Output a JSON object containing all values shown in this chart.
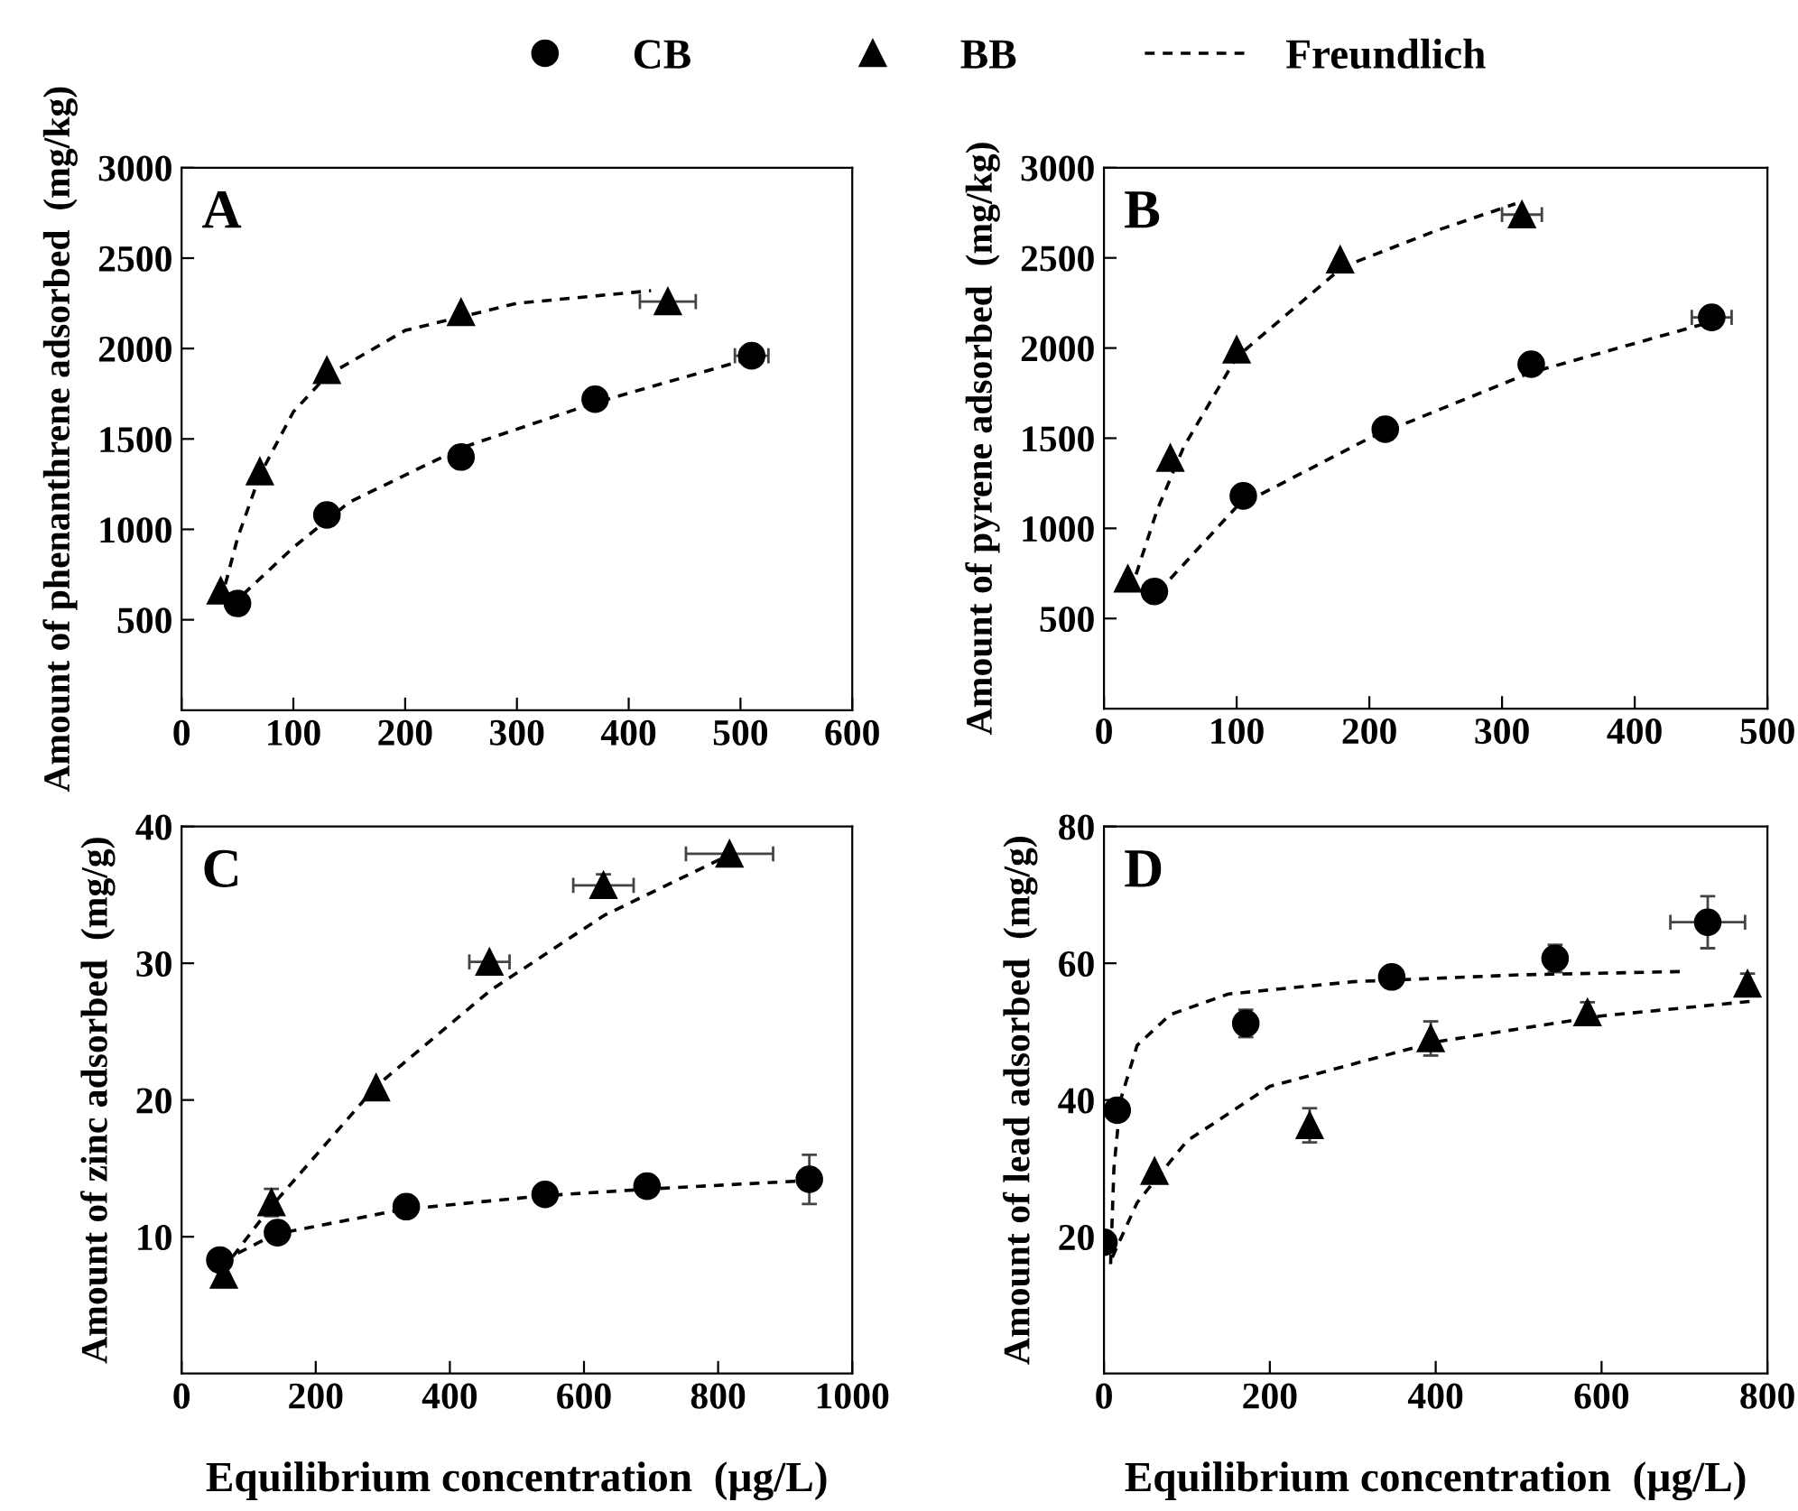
{
  "chart_data": [
    {
      "type": "scatter",
      "title": "A",
      "ylabel": "Amount of phenanthrene adsorbed  (mg/kg)",
      "xlim": [
        0,
        600
      ],
      "xticks": [
        0,
        100,
        200,
        300,
        400,
        500,
        600
      ],
      "ylim": [
        0,
        3000
      ],
      "yticks": [
        500,
        1000,
        1500,
        2000,
        2500,
        3000
      ],
      "legend": "top",
      "grid": false,
      "series": [
        {
          "name": "CB",
          "color": "#000000",
          "marker": "circle",
          "x": [
            50,
            130,
            250,
            370,
            510
          ],
          "values": [
            590,
            1080,
            1400,
            1720,
            1960
          ],
          "xerrors": [
            null,
            null,
            null,
            null,
            15
          ]
        },
        {
          "name": "BB",
          "color": "#000000",
          "marker": "triangle",
          "x": [
            35,
            70,
            130,
            250,
            435
          ],
          "values": [
            660,
            1320,
            1880,
            2200,
            2260
          ],
          "xerrors": [
            null,
            null,
            null,
            null,
            25
          ]
        },
        {
          "name": "Freundlich",
          "type": "line",
          "line_style": "dashed",
          "marker": "none",
          "color": "#000000",
          "x": [
            55,
            100,
            150,
            250,
            370,
            500
          ],
          "values": [
            640,
            900,
            1150,
            1450,
            1700,
            1930
          ]
        },
        {
          "type": "line",
          "line_style": "dashed",
          "marker": "none",
          "color": "#000000",
          "x": [
            35,
            50,
            70,
            100,
            130,
            200,
            300,
            420
          ],
          "values": [
            600,
            950,
            1300,
            1650,
            1850,
            2100,
            2250,
            2320
          ]
        }
      ]
    },
    {
      "type": "scatter",
      "title": "B",
      "ylabel": "Amount of pyrene adsorbed  (mg/kg)",
      "xlim": [
        0,
        500
      ],
      "xticks": [
        0,
        100,
        200,
        300,
        400,
        500
      ],
      "ylim": [
        0,
        3000
      ],
      "yticks": [
        500,
        1000,
        1500,
        2000,
        2500,
        3000
      ],
      "grid": false,
      "series": [
        {
          "name": "CB",
          "color": "#000000",
          "marker": "circle",
          "x": [
            38,
            105,
            212,
            322,
            458
          ],
          "values": [
            650,
            1180,
            1550,
            1910,
            2170
          ],
          "xerrors": [
            null,
            null,
            null,
            null,
            15
          ]
        },
        {
          "name": "BB",
          "color": "#000000",
          "marker": "triangle",
          "x": [
            18,
            50,
            100,
            178,
            315
          ],
          "values": [
            720,
            1390,
            1990,
            2490,
            2740
          ],
          "xerrors": [
            null,
            null,
            null,
            null,
            15
          ]
        },
        {
          "name": "Freundlich",
          "type": "line",
          "line_style": "dashed",
          "marker": "none",
          "color": "#000000",
          "x": [
            50,
            100,
            200,
            320,
            460
          ],
          "values": [
            720,
            1120,
            1500,
            1860,
            2150
          ]
        },
        {
          "type": "line",
          "line_style": "dashed",
          "marker": "none",
          "color": "#000000",
          "x": [
            20,
            40,
            60,
            100,
            180,
            250,
            310
          ],
          "values": [
            650,
            1100,
            1450,
            1950,
            2450,
            2650,
            2800
          ]
        }
      ]
    },
    {
      "type": "scatter",
      "title": "C",
      "xlabel": "Equilibrium concentration  (µg/L)",
      "ylabel": "Amount of zinc adsorbed  (mg/g)",
      "xlim": [
        0,
        1000
      ],
      "xticks": [
        0,
        200,
        400,
        600,
        800,
        1000
      ],
      "ylim": [
        0,
        40
      ],
      "yticks": [
        10,
        20,
        30,
        40
      ],
      "grid": false,
      "series": [
        {
          "name": "CB",
          "color": "#000000",
          "marker": "circle",
          "x": [
            57,
            143,
            335,
            542,
            694,
            936
          ],
          "values": [
            8.3,
            10.3,
            12.2,
            13.1,
            13.7,
            14.2
          ],
          "errors": [
            null,
            null,
            null,
            null,
            0.7,
            1.8
          ]
        },
        {
          "name": "BB",
          "color": "#000000",
          "marker": "triangle",
          "x": [
            63,
            134,
            290,
            459,
            629,
            817
          ],
          "values": [
            7.2,
            12.5,
            20.9,
            30.1,
            35.7,
            38.0
          ],
          "errors": [
            null,
            1,
            null,
            null,
            0.8,
            null
          ],
          "xerrors": [
            null,
            null,
            null,
            30,
            45,
            65
          ]
        },
        {
          "name": "Freundlich",
          "type": "line",
          "line_style": "dashed",
          "marker": "none",
          "color": "#000000",
          "x": [
            60,
            140,
            330,
            540,
            700,
            930
          ],
          "values": [
            8.2,
            10.2,
            12,
            13,
            13.5,
            14.1
          ]
        },
        {
          "type": "line",
          "line_style": "dashed",
          "marker": "none",
          "color": "#000000",
          "x": [
            60,
            130,
            290,
            460,
            630,
            820
          ],
          "values": [
            7.5,
            12,
            21,
            28,
            33.5,
            38
          ]
        }
      ]
    },
    {
      "type": "scatter",
      "title": "D",
      "xlabel": "Equilibrium concentration  (µg/L)",
      "ylabel": "Amount of lead adsorbed  (mg/g)",
      "xlim": [
        0,
        800
      ],
      "xticks": [
        0,
        200,
        400,
        600,
        800
      ],
      "ylim": [
        0,
        80
      ],
      "yticks": [
        20,
        40,
        60,
        80
      ],
      "grid": false,
      "series": [
        {
          "name": "CB",
          "color": "#000000",
          "marker": "circle",
          "x": [
            0,
            16,
            171,
            347,
            544,
            728
          ],
          "values": [
            19.2,
            38.5,
            51.2,
            58,
            60.7,
            66
          ],
          "errors": [
            null,
            null,
            2,
            null,
            2,
            3.8
          ],
          "xerrors": [
            null,
            null,
            null,
            null,
            null,
            45
          ]
        },
        {
          "name": "BB",
          "color": "#000000",
          "marker": "triangle",
          "x": [
            61,
            248,
            394,
            583,
            776
          ],
          "values": [
            29.6,
            36.3,
            49,
            52.8,
            57
          ],
          "errors": [
            null,
            2.5,
            2.5,
            1.5,
            1.5
          ]
        },
        {
          "name": "Freundlich",
          "type": "line",
          "line_style": "dashed",
          "marker": "none",
          "color": "#000000",
          "x": [
            8,
            12,
            20,
            40,
            80,
            150,
            300,
            500,
            700
          ],
          "values": [
            16,
            30,
            40,
            48,
            52.5,
            55.5,
            57.3,
            58.3,
            58.8
          ]
        },
        {
          "type": "line",
          "line_style": "dashed",
          "marker": "none",
          "color": "#000000",
          "x": [
            10,
            40,
            100,
            200,
            400,
            600,
            785
          ],
          "values": [
            17,
            25,
            34,
            42,
            48.5,
            52.3,
            54.5
          ]
        }
      ]
    }
  ]
}
